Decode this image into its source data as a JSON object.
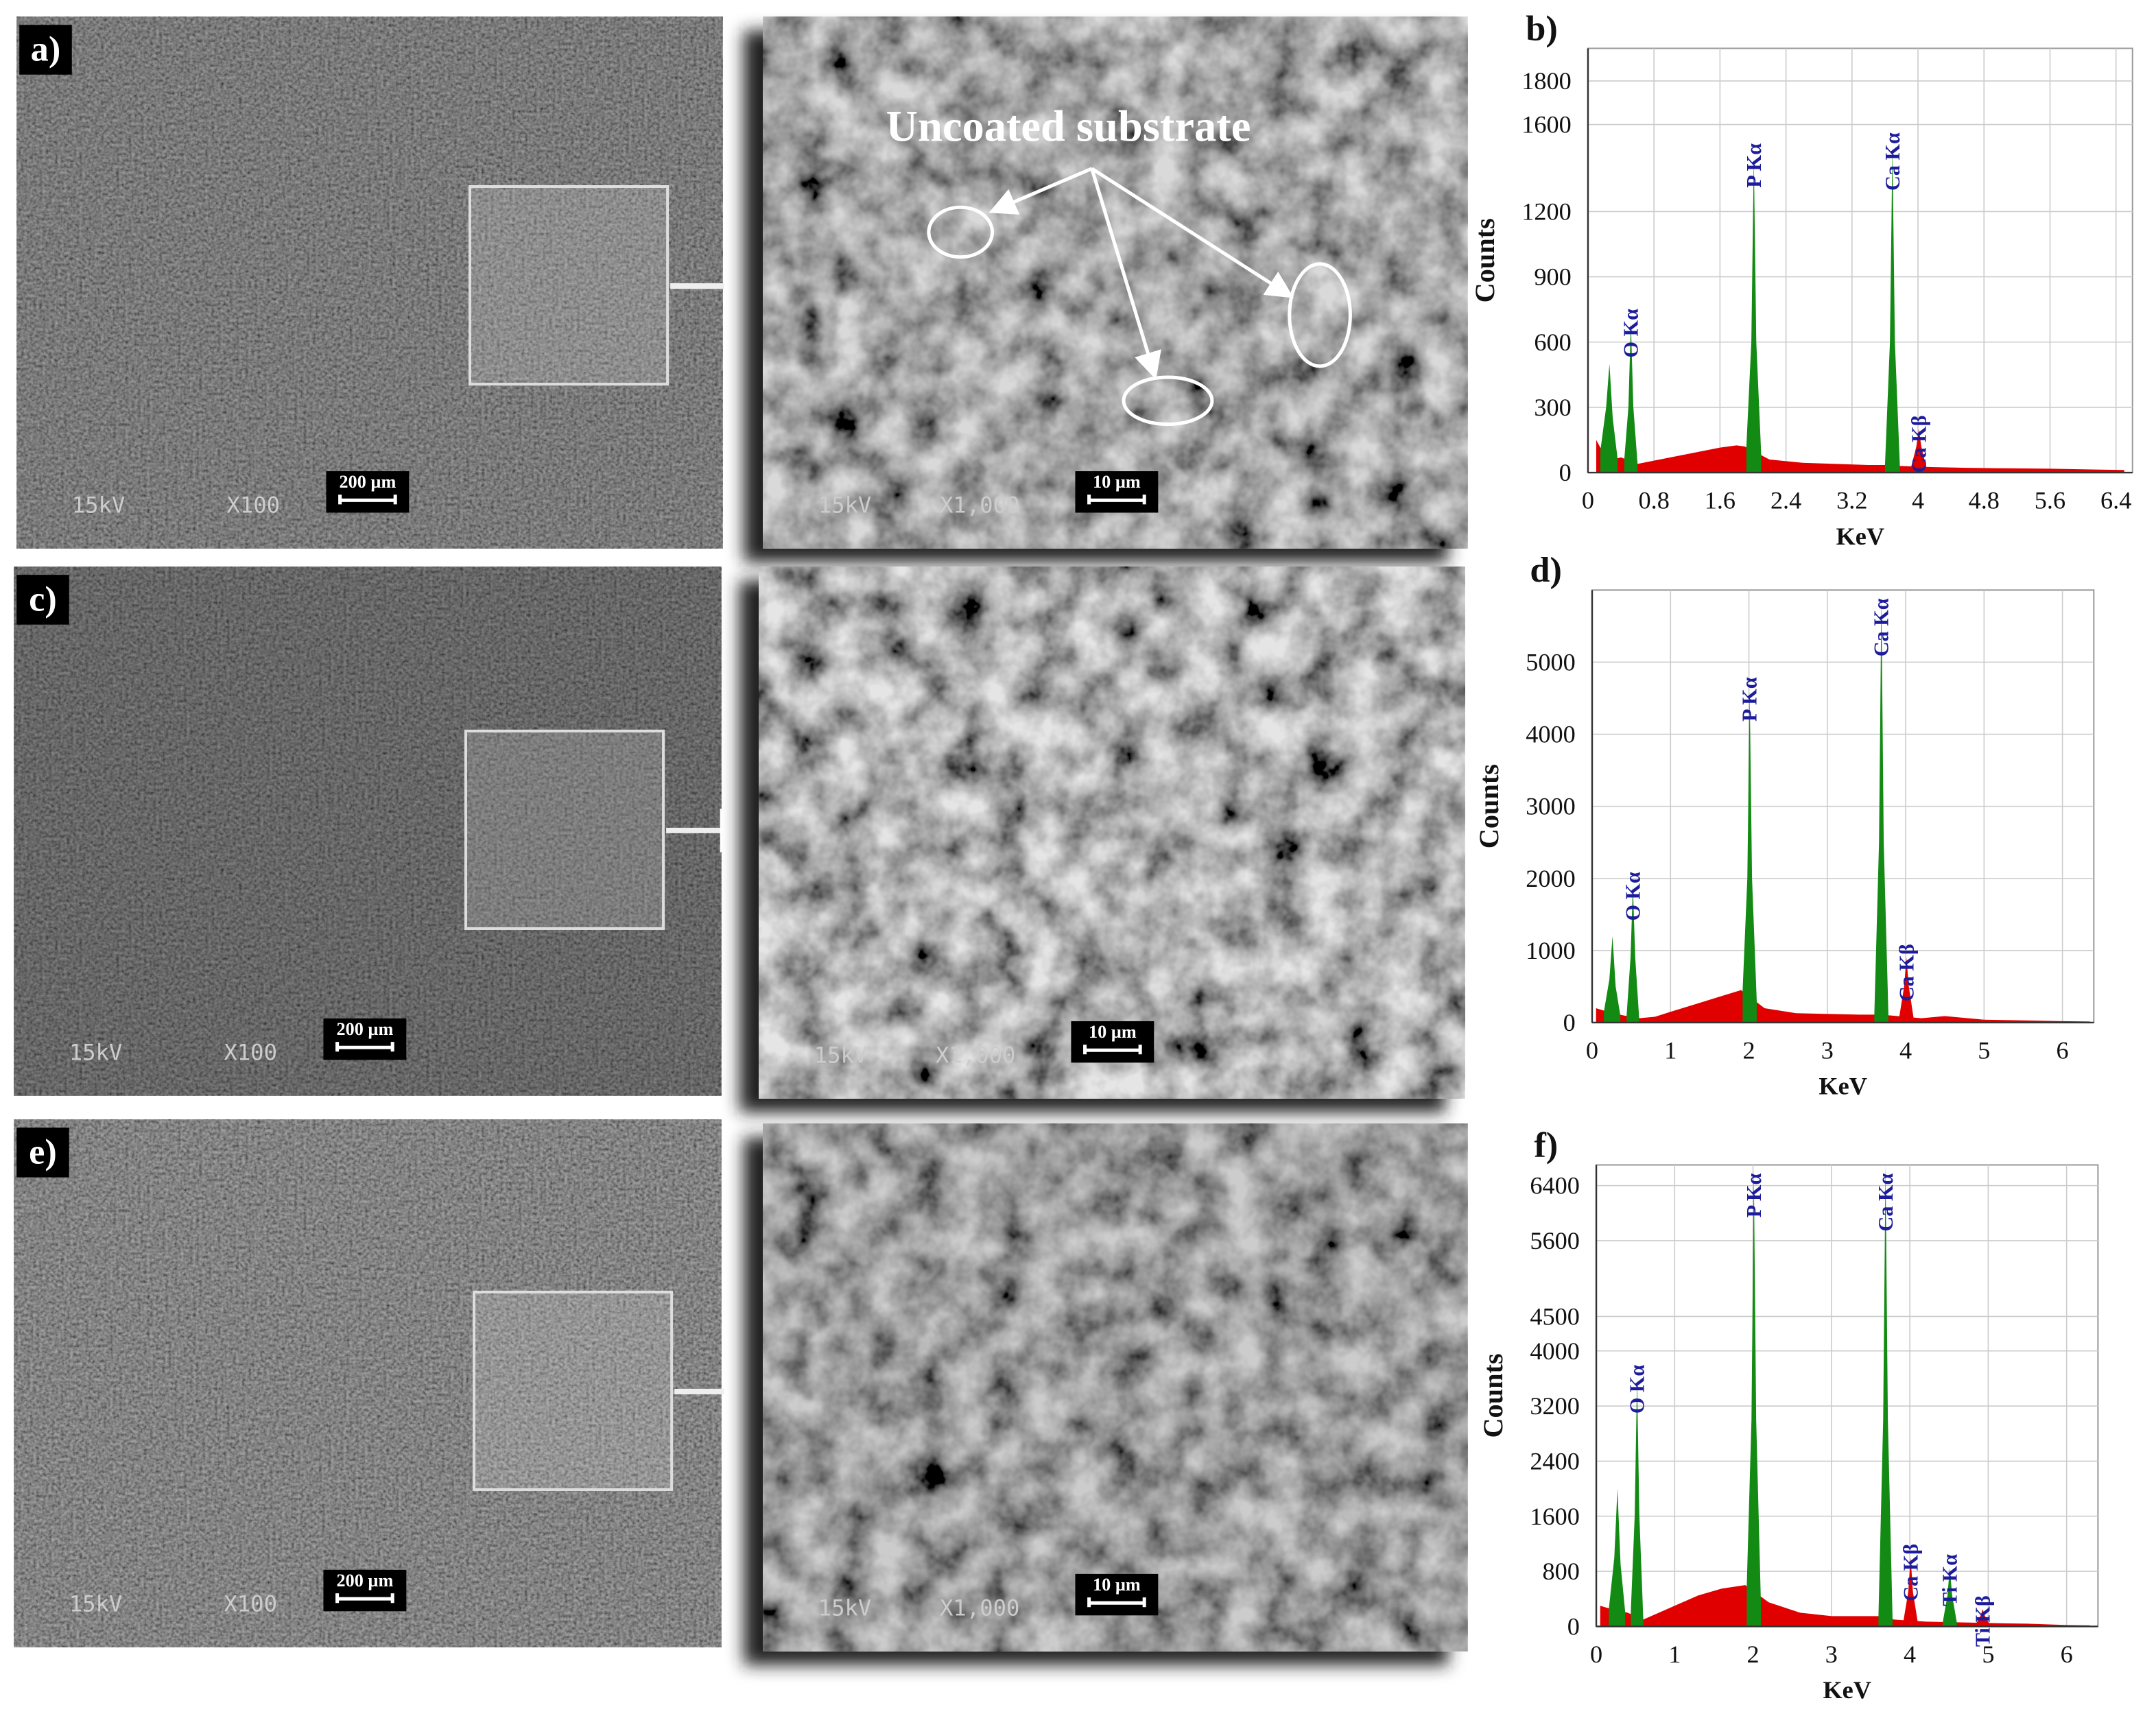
{
  "micrographs": [
    {
      "label": "a)",
      "voltage": "15kV",
      "magnification": "X100",
      "scale_bar": "200 µm"
    },
    {
      "voltage": "15kV",
      "magnification": "X1,000",
      "scale_bar": "10 µm"
    },
    {
      "label": "c)",
      "voltage": "15kV",
      "magnification": "X100",
      "scale_bar": "200 µm"
    },
    {
      "voltage": "15kV",
      "magnification": "X1,000",
      "scale_bar": "10 µm"
    },
    {
      "label": "e)",
      "voltage": "15kV",
      "magnification": "X100",
      "scale_bar": "200 µm"
    },
    {
      "voltage": "15kV",
      "magnification": "X1,000",
      "scale_bar": "10 µm"
    }
  ],
  "annotation": "Uncoated substrate",
  "chart_data": [
    {
      "type": "area",
      "panel": "b)",
      "xlabel": "KeV",
      "ylabel": "Counts",
      "grid": true,
      "xlim": [
        0,
        6.6
      ],
      "ylim": [
        0,
        1950
      ],
      "xticks": [
        0,
        0.8,
        1.6,
        2.4,
        3.2,
        4,
        4.8,
        5.6,
        6.4
      ],
      "yticks": [
        0,
        300,
        600,
        900,
        1200,
        1600,
        1800
      ],
      "x": [
        0.1,
        0.2,
        0.3,
        0.4,
        0.6,
        0.8,
        1.0,
        1.2,
        1.4,
        1.6,
        1.8,
        1.9,
        2.2,
        2.6,
        3.0,
        3.4,
        3.6,
        3.8,
        4.2,
        4.6,
        5.0,
        5.6,
        6.0,
        6.5
      ],
      "series": [
        {
          "color": "#e00000",
          "values": [
            150,
            80,
            60,
            70,
            40,
            55,
            70,
            85,
            100,
            115,
            125,
            120,
            60,
            45,
            40,
            35,
            35,
            30,
            25,
            22,
            20,
            18,
            15,
            12
          ]
        }
      ],
      "peaks": [
        {
          "color": "#138a13",
          "x": [
            0.15,
            0.22,
            0.26,
            0.3,
            0.36
          ],
          "values": [
            100,
            300,
            500,
            250,
            60
          ]
        },
        {
          "label": "O Kα",
          "color": "#138a13",
          "x": [
            0.44,
            0.49,
            0.52,
            0.55,
            0.6
          ],
          "values": [
            60,
            300,
            690,
            300,
            45
          ]
        },
        {
          "label": "P Kα",
          "color": "#138a13",
          "x": [
            1.92,
            1.98,
            2.01,
            2.04,
            2.1
          ],
          "values": [
            120,
            600,
            1450,
            600,
            80
          ]
        },
        {
          "label": "Ca Kα",
          "color": "#138a13",
          "x": [
            3.6,
            3.66,
            3.69,
            3.72,
            3.78
          ],
          "values": [
            35,
            600,
            1500,
            600,
            35
          ]
        },
        {
          "label": "Ca Kβ",
          "color": "#e00000",
          "x": [
            3.92,
            3.98,
            4.01,
            4.04,
            4.1
          ],
          "values": [
            30,
            120,
            200,
            120,
            25
          ]
        }
      ]
    },
    {
      "type": "area",
      "panel": "d)",
      "xlabel": "KeV",
      "ylabel": "Counts",
      "grid": true,
      "xlim": [
        0,
        6.4
      ],
      "ylim": [
        0,
        6000
      ],
      "xticks": [
        0,
        1,
        2,
        3,
        4,
        5,
        6
      ],
      "yticks": [
        0,
        1000,
        2000,
        3000,
        4000,
        5000
      ],
      "x": [
        0.05,
        0.2,
        0.4,
        0.6,
        0.8,
        1.0,
        1.3,
        1.6,
        1.9,
        2.2,
        2.6,
        3.0,
        3.4,
        3.6,
        3.8,
        4.2,
        4.5,
        5.0,
        5.5,
        6.0,
        6.35
      ],
      "series": [
        {
          "color": "#e00000",
          "values": [
            200,
            150,
            100,
            60,
            80,
            150,
            250,
            350,
            450,
            200,
            130,
            120,
            110,
            110,
            100,
            60,
            90,
            40,
            30,
            20,
            15
          ]
        }
      ],
      "peaks": [
        {
          "color": "#138a13",
          "x": [
            0.15,
            0.22,
            0.26,
            0.3,
            0.36
          ],
          "values": [
            150,
            600,
            1200,
            500,
            100
          ]
        },
        {
          "label": "O Kα",
          "color": "#138a13",
          "x": [
            0.44,
            0.49,
            0.52,
            0.55,
            0.6
          ],
          "values": [
            100,
            900,
            1900,
            900,
            60
          ]
        },
        {
          "label": "P Kα",
          "color": "#138a13",
          "x": [
            1.92,
            1.98,
            2.01,
            2.04,
            2.1
          ],
          "values": [
            450,
            2000,
            4600,
            2000,
            300
          ]
        },
        {
          "label": "Ca Kα",
          "color": "#138a13",
          "x": [
            3.6,
            3.66,
            3.69,
            3.72,
            3.78
          ],
          "values": [
            110,
            2500,
            5900,
            2500,
            100
          ]
        },
        {
          "label": "Ca Kβ",
          "color": "#e00000",
          "x": [
            3.92,
            3.98,
            4.01,
            4.04,
            4.1
          ],
          "values": [
            90,
            500,
            900,
            500,
            70
          ]
        }
      ]
    },
    {
      "type": "area",
      "panel": "f)",
      "xlabel": "KeV",
      "ylabel": "Counts",
      "grid": true,
      "xlim": [
        0,
        6.4
      ],
      "ylim": [
        0,
        6700
      ],
      "xticks": [
        0,
        1,
        2,
        3,
        4,
        5,
        6
      ],
      "yticks": [
        0,
        800,
        1600,
        2400,
        3200,
        4000,
        4500,
        5600,
        6400
      ],
      "x": [
        0.05,
        0.2,
        0.4,
        0.6,
        0.8,
        1.0,
        1.3,
        1.6,
        1.9,
        2.2,
        2.6,
        3.0,
        3.4,
        3.6,
        3.8,
        4.2,
        4.6,
        5.0,
        5.5,
        6.0,
        6.3
      ],
      "series": [
        {
          "color": "#e00000",
          "values": [
            300,
            250,
            200,
            100,
            200,
            300,
            450,
            550,
            600,
            350,
            200,
            150,
            150,
            150,
            100,
            70,
            60,
            50,
            40,
            20,
            15
          ]
        }
      ],
      "peaks": [
        {
          "color": "#138a13",
          "x": [
            0.16,
            0.23,
            0.27,
            0.31,
            0.37
          ],
          "values": [
            250,
            1000,
            2000,
            900,
            200
          ]
        },
        {
          "label": "O Kα",
          "color": "#138a13",
          "x": [
            0.44,
            0.49,
            0.52,
            0.55,
            0.6
          ],
          "values": [
            200,
            1600,
            3600,
            1600,
            100
          ]
        },
        {
          "label": "P Kα",
          "color": "#138a13",
          "x": [
            1.92,
            1.98,
            2.01,
            2.04,
            2.1
          ],
          "values": [
            600,
            3000,
            6600,
            3000,
            350
          ]
        },
        {
          "label": "Ca Kα",
          "color": "#138a13",
          "x": [
            3.6,
            3.66,
            3.69,
            3.72,
            3.78
          ],
          "values": [
            150,
            3000,
            6700,
            3000,
            100
          ]
        },
        {
          "label": "Ca Kβ",
          "color": "#e00000",
          "x": [
            3.92,
            3.98,
            4.01,
            4.04,
            4.1
          ],
          "values": [
            90,
            500,
            1000,
            500,
            70
          ]
        },
        {
          "label": "Ti Kα",
          "color": "#138a13",
          "x": [
            4.42,
            4.48,
            4.51,
            4.54,
            4.6
          ],
          "values": [
            60,
            450,
            850,
            450,
            55
          ]
        },
        {
          "label": "Ti Kβ",
          "color": "#e00000",
          "x": [
            4.85,
            4.9,
            4.93,
            4.96,
            5.01
          ],
          "values": [
            50,
            150,
            250,
            150,
            45
          ]
        }
      ]
    }
  ]
}
